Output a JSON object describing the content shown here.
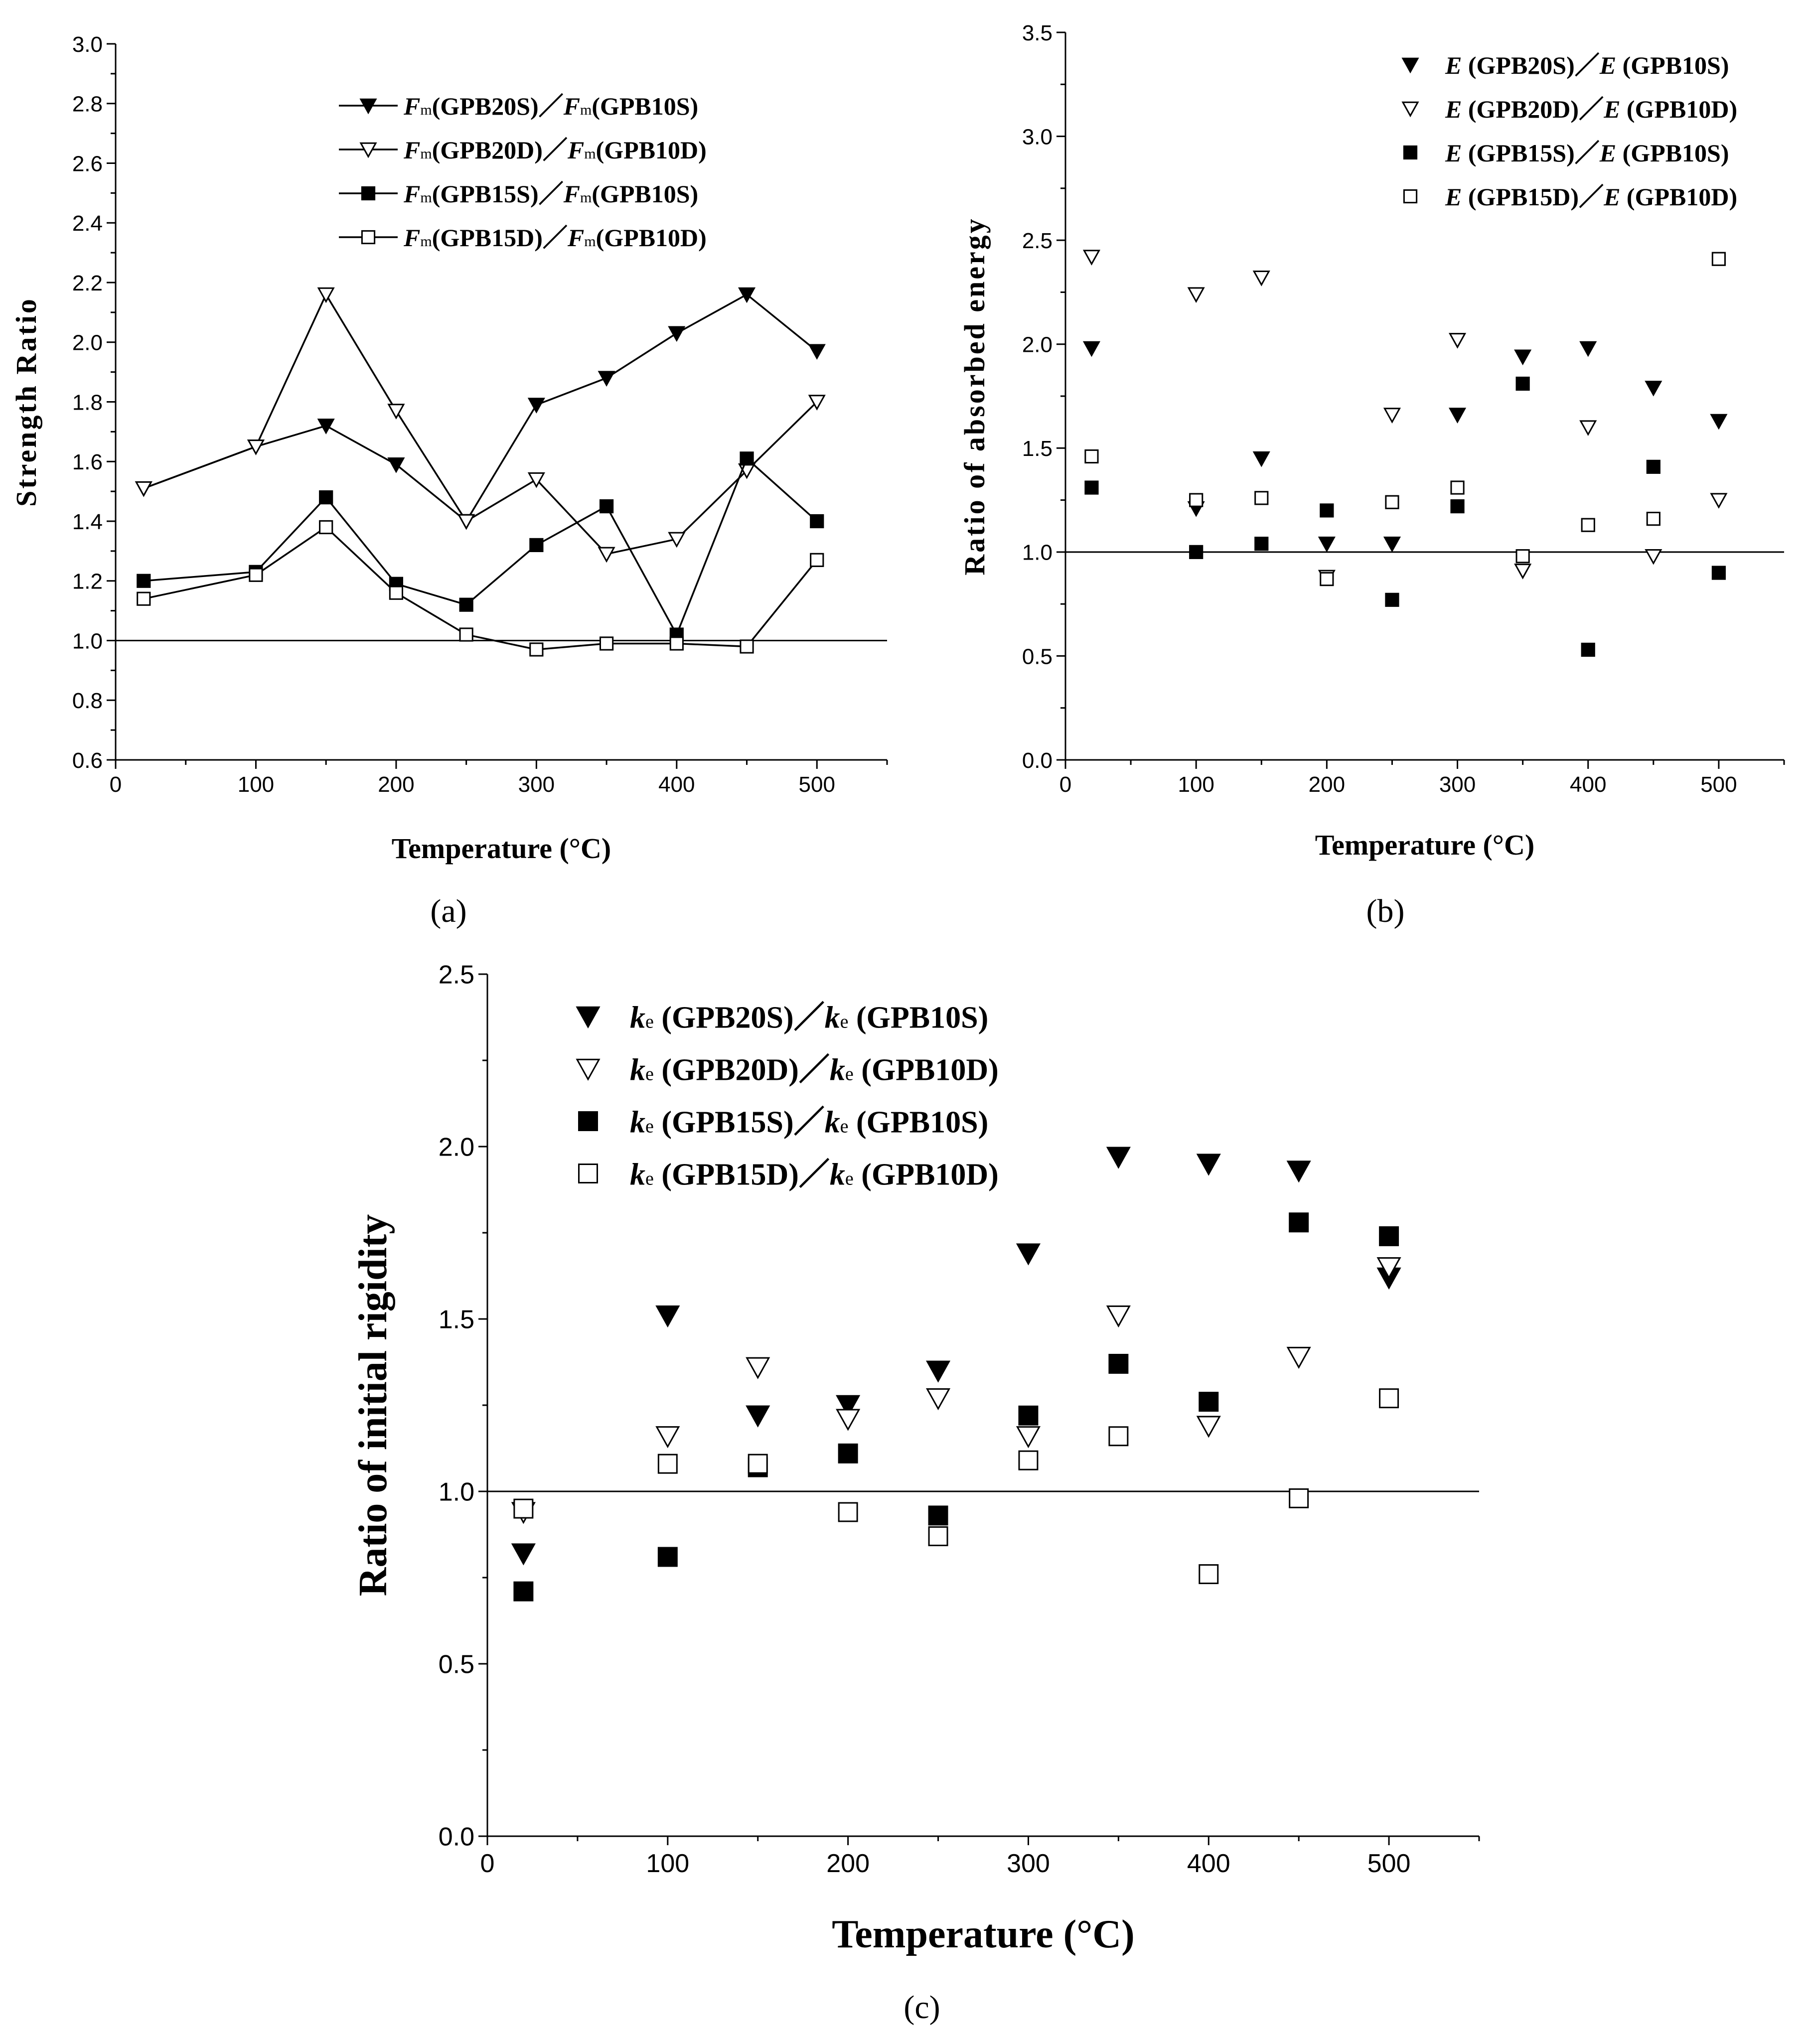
{
  "chart_data": [
    {
      "panel": "(a)",
      "type": "line",
      "xlabel": "Temperature (°C)",
      "ylabel": "Strength Ratio",
      "xlim": [
        0,
        550
      ],
      "ylim": [
        0.6,
        3.0
      ],
      "xticks": [
        "0",
        "100",
        "200",
        "300",
        "400",
        "500"
      ],
      "yticks": [
        "0.6",
        "0.8",
        "1.0",
        "1.2",
        "1.4",
        "1.6",
        "1.8",
        "2.0",
        "2.2",
        "2.4",
        "2.6",
        "2.8",
        "3.0"
      ],
      "reference_line": 1.0,
      "legend_position": "top-center",
      "x": [
        20,
        100,
        150,
        200,
        250,
        300,
        350,
        400,
        450,
        500
      ],
      "series": [
        {
          "sym": "F",
          "sub": "m",
          "num": "(GPB20S)",
          "den": "(GPB10S)",
          "marker": "triangle-down-filled",
          "values": [
            1.51,
            1.65,
            1.72,
            1.59,
            1.4,
            1.79,
            1.88,
            2.03,
            2.16,
            1.97
          ]
        },
        {
          "sym": "F",
          "sub": "m",
          "num": "(GPB20D)",
          "den": "(GPB10D)",
          "marker": "triangle-down-open",
          "values": [
            1.51,
            1.65,
            2.16,
            1.77,
            1.4,
            1.54,
            1.29,
            1.34,
            1.57,
            1.8
          ]
        },
        {
          "sym": "F",
          "sub": "m",
          "num": "(GPB15S)",
          "den": "(GPB10S)",
          "marker": "square-filled",
          "values": [
            1.2,
            1.23,
            1.48,
            1.19,
            1.12,
            1.32,
            1.45,
            1.02,
            1.61,
            1.4
          ]
        },
        {
          "sym": "F",
          "sub": "m",
          "num": "(GPB15D)",
          "den": "(GPB10D)",
          "marker": "square-open",
          "values": [
            1.14,
            1.22,
            1.38,
            1.16,
            1.02,
            0.97,
            0.99,
            0.99,
            0.98,
            1.27
          ]
        }
      ]
    },
    {
      "panel": "(b)",
      "type": "scatter",
      "xlabel": "Temperature (°C)",
      "ylabel": "Ratio of absorbed energy",
      "xlim": [
        0,
        550
      ],
      "ylim": [
        0.0,
        3.5
      ],
      "xticks": [
        "0",
        "100",
        "200",
        "300",
        "400",
        "500"
      ],
      "yticks": [
        "0.0",
        "0.5",
        "1.0",
        "1.5",
        "2.0",
        "2.5",
        "3.0",
        "3.5"
      ],
      "reference_line": 1.0,
      "legend_position": "top-right",
      "x": [
        20,
        100,
        150,
        200,
        250,
        300,
        350,
        400,
        450,
        500
      ],
      "series": [
        {
          "sym": "E",
          "sub": "",
          "num": " (GPB20S)",
          "den": " (GPB10S)",
          "marker": "triangle-down-filled",
          "values": [
            1.98,
            1.21,
            1.45,
            1.04,
            1.04,
            1.66,
            1.94,
            1.98,
            1.79,
            1.63
          ]
        },
        {
          "sym": "E",
          "sub": "",
          "num": " (GPB20D)",
          "den": " (GPB10D)",
          "marker": "triangle-down-open",
          "values": [
            2.42,
            2.24,
            2.32,
            0.88,
            1.66,
            2.02,
            0.91,
            1.6,
            0.98,
            1.25
          ]
        },
        {
          "sym": "E",
          "sub": "",
          "num": " (GPB15S)",
          "den": " (GPB10S)",
          "marker": "square-filled",
          "values": [
            1.31,
            1.0,
            1.04,
            1.2,
            0.77,
            1.22,
            1.81,
            0.53,
            1.41,
            0.9
          ]
        },
        {
          "sym": "E",
          "sub": "",
          "num": " (GPB15D)",
          "den": " (GPB10D)",
          "marker": "square-open",
          "values": [
            1.46,
            1.25,
            1.26,
            0.87,
            1.24,
            1.31,
            0.98,
            1.13,
            1.16,
            2.41
          ]
        }
      ]
    },
    {
      "panel": "(c)",
      "type": "scatter",
      "xlabel": "Temperature (°C)",
      "ylabel": "Ratio of initial rigidity",
      "xlim": [
        0,
        550
      ],
      "ylim": [
        0.0,
        2.5
      ],
      "xticks": [
        "0",
        "100",
        "200",
        "300",
        "400",
        "500"
      ],
      "yticks": [
        "0.0",
        "0.5",
        "1.0",
        "1.5",
        "2.0",
        "2.5"
      ],
      "reference_line": 1.0,
      "legend_position": "top-left",
      "x": [
        20,
        100,
        150,
        200,
        250,
        300,
        350,
        400,
        450,
        500
      ],
      "series": [
        {
          "sym": "k",
          "sub": "e",
          "num": " (GPB20S)",
          "den": " (GPB10S)",
          "marker": "triangle-down-filled",
          "values": [
            0.82,
            1.51,
            1.22,
            1.25,
            1.35,
            1.69,
            1.97,
            1.95,
            1.93,
            1.62
          ]
        },
        {
          "sym": "k",
          "sub": "e",
          "num": " (GPB20D)",
          "den": " (GPB10D)",
          "marker": "triangle-down-open",
          "values": [
            0.94,
            1.16,
            1.36,
            1.21,
            1.27,
            1.16,
            1.51,
            1.19,
            1.39,
            1.65
          ]
        },
        {
          "sym": "k",
          "sub": "e",
          "num": " (GPB15S)",
          "den": " (GPB10S)",
          "marker": "square-filled",
          "values": [
            0.71,
            0.81,
            1.07,
            1.11,
            0.93,
            1.22,
            1.37,
            1.26,
            1.78,
            1.74
          ]
        },
        {
          "sym": "k",
          "sub": "e",
          "num": " (GPB15D)",
          "den": " (GPB10D)",
          "marker": "square-open",
          "values": [
            0.95,
            1.08,
            1.08,
            0.94,
            0.87,
            1.09,
            1.16,
            0.76,
            0.98,
            1.27
          ]
        }
      ]
    }
  ]
}
